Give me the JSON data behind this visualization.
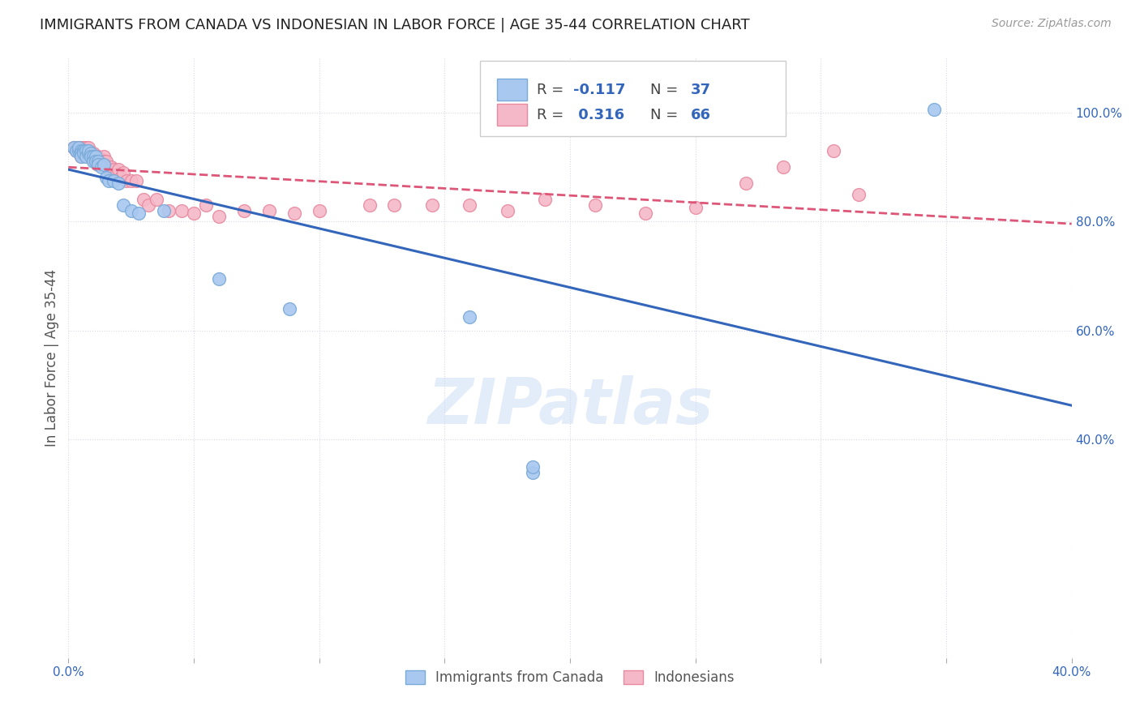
{
  "title": "IMMIGRANTS FROM CANADA VS INDONESIAN IN LABOR FORCE | AGE 35-44 CORRELATION CHART",
  "source": "Source: ZipAtlas.com",
  "ylabel": "In Labor Force | Age 35-44",
  "xlim": [
    0.0,
    0.4
  ],
  "ylim": [
    0.0,
    1.1
  ],
  "xticks": [
    0.0,
    0.05,
    0.1,
    0.15,
    0.2,
    0.25,
    0.3,
    0.35,
    0.4
  ],
  "xticklabels": [
    "0.0%",
    "",
    "",
    "",
    "",
    "",
    "",
    "",
    "40.0%"
  ],
  "yticks_right": [
    0.4,
    0.6,
    0.8,
    1.0
  ],
  "ytick_right_labels": [
    "40.0%",
    "60.0%",
    "80.0%",
    "100.0%"
  ],
  "canada_color": "#a8c8f0",
  "indonesia_color": "#f5b8c8",
  "canada_edge": "#7aaad8",
  "indonesia_edge": "#e88aa0",
  "canada_line_color": "#3366bb",
  "indonesia_line_color": "#dd5577",
  "background_color": "#ffffff",
  "grid_color": "#d8d8e8",
  "title_fontsize": 13,
  "axis_label_color": "#3366bb",
  "watermark": "ZIPatlas",
  "canada_x": [
    0.002,
    0.003,
    0.004,
    0.004,
    0.005,
    0.005,
    0.005,
    0.006,
    0.006,
    0.007,
    0.007,
    0.008,
    0.008,
    0.009,
    0.009,
    0.01,
    0.01,
    0.011,
    0.011,
    0.012,
    0.012,
    0.013,
    0.014,
    0.015,
    0.016,
    0.018,
    0.02,
    0.022,
    0.025,
    0.028,
    0.038,
    0.06,
    0.088,
    0.16,
    0.185,
    0.185,
    0.345
  ],
  "canada_y": [
    0.935,
    0.93,
    0.93,
    0.935,
    0.93,
    0.925,
    0.92,
    0.93,
    0.925,
    0.93,
    0.92,
    0.925,
    0.93,
    0.925,
    0.92,
    0.92,
    0.91,
    0.92,
    0.91,
    0.91,
    0.905,
    0.9,
    0.905,
    0.88,
    0.875,
    0.875,
    0.87,
    0.83,
    0.82,
    0.815,
    0.82,
    0.695,
    0.64,
    0.625,
    0.34,
    0.35,
    1.005
  ],
  "indonesia_x": [
    0.002,
    0.003,
    0.003,
    0.004,
    0.004,
    0.005,
    0.005,
    0.006,
    0.006,
    0.006,
    0.007,
    0.007,
    0.007,
    0.008,
    0.008,
    0.008,
    0.009,
    0.009,
    0.01,
    0.01,
    0.01,
    0.011,
    0.011,
    0.012,
    0.012,
    0.013,
    0.013,
    0.014,
    0.014,
    0.015,
    0.016,
    0.016,
    0.017,
    0.018,
    0.019,
    0.02,
    0.021,
    0.022,
    0.023,
    0.025,
    0.027,
    0.03,
    0.032,
    0.035,
    0.04,
    0.045,
    0.05,
    0.055,
    0.06,
    0.07,
    0.08,
    0.09,
    0.1,
    0.12,
    0.13,
    0.145,
    0.16,
    0.175,
    0.19,
    0.21,
    0.23,
    0.25,
    0.27,
    0.285,
    0.305,
    0.315
  ],
  "indonesia_y": [
    0.935,
    0.935,
    0.93,
    0.935,
    0.93,
    0.935,
    0.92,
    0.935,
    0.93,
    0.925,
    0.935,
    0.93,
    0.925,
    0.935,
    0.925,
    0.92,
    0.925,
    0.92,
    0.925,
    0.92,
    0.915,
    0.92,
    0.91,
    0.92,
    0.905,
    0.915,
    0.91,
    0.92,
    0.91,
    0.91,
    0.9,
    0.895,
    0.9,
    0.895,
    0.885,
    0.895,
    0.88,
    0.89,
    0.875,
    0.875,
    0.875,
    0.84,
    0.83,
    0.84,
    0.82,
    0.82,
    0.815,
    0.83,
    0.81,
    0.82,
    0.82,
    0.815,
    0.82,
    0.83,
    0.83,
    0.83,
    0.83,
    0.82,
    0.84,
    0.83,
    0.815,
    0.825,
    0.87,
    0.9,
    0.93,
    0.85
  ]
}
